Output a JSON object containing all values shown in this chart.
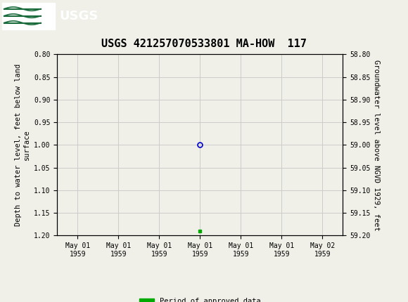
{
  "title": "USGS 421257070533801 MA-HOW  117",
  "title_fontsize": 11,
  "header_color": "#1a6b3c",
  "ylabel_left": "Depth to water level, feet below land\nsurface",
  "ylabel_right": "Groundwater level above NGVD 1929, feet",
  "ylim_left": [
    0.8,
    1.2
  ],
  "ylim_right": [
    58.8,
    59.2
  ],
  "yticks_left": [
    0.8,
    0.85,
    0.9,
    0.95,
    1.0,
    1.05,
    1.1,
    1.15,
    1.2
  ],
  "yticks_right": [
    58.8,
    58.85,
    58.9,
    58.95,
    59.0,
    59.05,
    59.1,
    59.15,
    59.2
  ],
  "data_point_x": 3.0,
  "data_point_y": 1.0,
  "data_point_color": "#0000cc",
  "data_point_marker": "o",
  "data_point_size": 5,
  "green_marker_x": 3.0,
  "green_marker_y": 1.19,
  "green_marker_color": "#00aa00",
  "grid_color": "#cccccc",
  "tick_label_fontsize": 7,
  "axis_label_fontsize": 7.5,
  "xtick_labels": [
    "May 01\n1959",
    "May 01\n1959",
    "May 01\n1959",
    "May 01\n1959",
    "May 01\n1959",
    "May 01\n1959",
    "May 02\n1959"
  ],
  "xtick_positions": [
    0,
    1,
    2,
    3,
    4,
    5,
    6
  ],
  "legend_label": "Period of approved data",
  "legend_color": "#00aa00",
  "bg_color": "#f0f0e8",
  "plot_bg_color": "#f0f0e8",
  "font_family": "monospace"
}
